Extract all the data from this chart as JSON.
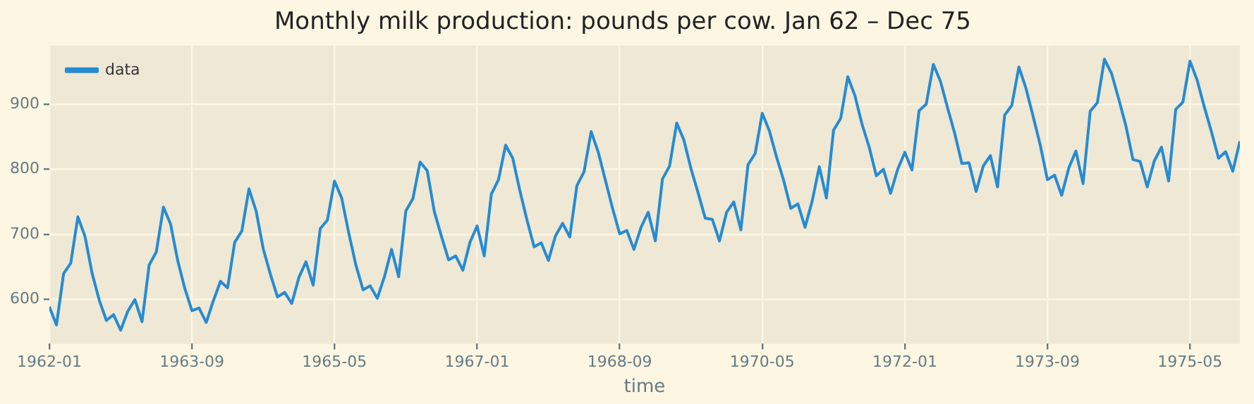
{
  "chart_data": {
    "type": "line",
    "title": "Monthly milk production: pounds per cow. Jan 62 – Dec 75",
    "xlabel": "time",
    "x": [
      "1962-01",
      "1962-02",
      "1962-03",
      "1962-04",
      "1962-05",
      "1962-06",
      "1962-07",
      "1962-08",
      "1962-09",
      "1962-10",
      "1962-11",
      "1962-12",
      "1963-01",
      "1963-02",
      "1963-03",
      "1963-04",
      "1963-05",
      "1963-06",
      "1963-07",
      "1963-08",
      "1963-09",
      "1963-10",
      "1963-11",
      "1963-12",
      "1964-01",
      "1964-02",
      "1964-03",
      "1964-04",
      "1964-05",
      "1964-06",
      "1964-07",
      "1964-08",
      "1964-09",
      "1964-10",
      "1964-11",
      "1964-12",
      "1965-01",
      "1965-02",
      "1965-03",
      "1965-04",
      "1965-05",
      "1965-06",
      "1965-07",
      "1965-08",
      "1965-09",
      "1965-10",
      "1965-11",
      "1965-12",
      "1966-01",
      "1966-02",
      "1966-03",
      "1966-04",
      "1966-05",
      "1966-06",
      "1966-07",
      "1966-08",
      "1966-09",
      "1966-10",
      "1966-11",
      "1966-12",
      "1967-01",
      "1967-02",
      "1967-03",
      "1967-04",
      "1967-05",
      "1967-06",
      "1967-07",
      "1967-08",
      "1967-09",
      "1967-10",
      "1967-11",
      "1967-12",
      "1968-01",
      "1968-02",
      "1968-03",
      "1968-04",
      "1968-05",
      "1968-06",
      "1968-07",
      "1968-08",
      "1968-09",
      "1968-10",
      "1968-11",
      "1968-12",
      "1969-01",
      "1969-02",
      "1969-03",
      "1969-04",
      "1969-05",
      "1969-06",
      "1969-07",
      "1969-08",
      "1969-09",
      "1969-10",
      "1969-11",
      "1969-12",
      "1970-01",
      "1970-02",
      "1970-03",
      "1970-04",
      "1970-05",
      "1970-06",
      "1970-07",
      "1970-08",
      "1970-09",
      "1970-10",
      "1970-11",
      "1970-12",
      "1971-01",
      "1971-02",
      "1971-03",
      "1971-04",
      "1971-05",
      "1971-06",
      "1971-07",
      "1971-08",
      "1971-09",
      "1971-10",
      "1971-11",
      "1971-12",
      "1972-01",
      "1972-02",
      "1972-03",
      "1972-04",
      "1972-05",
      "1972-06",
      "1972-07",
      "1972-08",
      "1972-09",
      "1972-10",
      "1972-11",
      "1972-12",
      "1973-01",
      "1973-02",
      "1973-03",
      "1973-04",
      "1973-05",
      "1973-06",
      "1973-07",
      "1973-08",
      "1973-09",
      "1973-10",
      "1973-11",
      "1973-12",
      "1974-01",
      "1974-02",
      "1974-03",
      "1974-04",
      "1974-05",
      "1974-06",
      "1974-07",
      "1974-08",
      "1974-09",
      "1974-10",
      "1974-11",
      "1974-12",
      "1975-01",
      "1975-02",
      "1975-03",
      "1975-04",
      "1975-05",
      "1975-06",
      "1975-07",
      "1975-08",
      "1975-09",
      "1975-10",
      "1975-11",
      "1975-12"
    ],
    "series": [
      {
        "name": "data",
        "color": "#268bd2",
        "values": [
          589,
          561,
          640,
          656,
          727,
          697,
          640,
          599,
          568,
          577,
          553,
          582,
          600,
          566,
          653,
          673,
          742,
          716,
          660,
          617,
          583,
          587,
          565,
          598,
          628,
          618,
          688,
          705,
          770,
          736,
          678,
          639,
          604,
          611,
          594,
          634,
          658,
          622,
          709,
          722,
          782,
          756,
          702,
          653,
          615,
          621,
          602,
          635,
          677,
          635,
          736,
          755,
          811,
          798,
          735,
          697,
          661,
          667,
          645,
          688,
          713,
          667,
          762,
          784,
          837,
          817,
          767,
          722,
          681,
          687,
          660,
          698,
          717,
          696,
          775,
          796,
          858,
          826,
          783,
          740,
          701,
          706,
          677,
          711,
          734,
          690,
          785,
          805,
          871,
          845,
          801,
          764,
          725,
          723,
          690,
          734,
          750,
          707,
          807,
          824,
          886,
          859,
          819,
          783,
          740,
          747,
          711,
          751,
          804,
          756,
          860,
          878,
          942,
          913,
          869,
          834,
          790,
          800,
          763,
          800,
          826,
          799,
          890,
          900,
          961,
          935,
          894,
          855,
          809,
          810,
          766,
          805,
          821,
          773,
          883,
          898,
          957,
          924,
          881,
          837,
          784,
          791,
          760,
          802,
          828,
          778,
          889,
          902,
          969,
          947,
          908,
          867,
          815,
          812,
          773,
          813,
          834,
          782,
          892,
          903,
          966,
          937,
          896,
          858,
          817,
          827,
          797,
          843
        ]
      }
    ],
    "xlim": [
      "1962-01",
      "1975-12"
    ],
    "xticks": [
      "1962-01",
      "1963-09",
      "1965-05",
      "1967-01",
      "1968-09",
      "1970-05",
      "1972-01",
      "1973-09",
      "1975-05"
    ],
    "ylim": [
      532.2,
      989.8
    ],
    "yticks": [
      600,
      700,
      800,
      900
    ],
    "grid": true,
    "legend": "top left",
    "marker": "none",
    "line_style": "solid"
  }
}
